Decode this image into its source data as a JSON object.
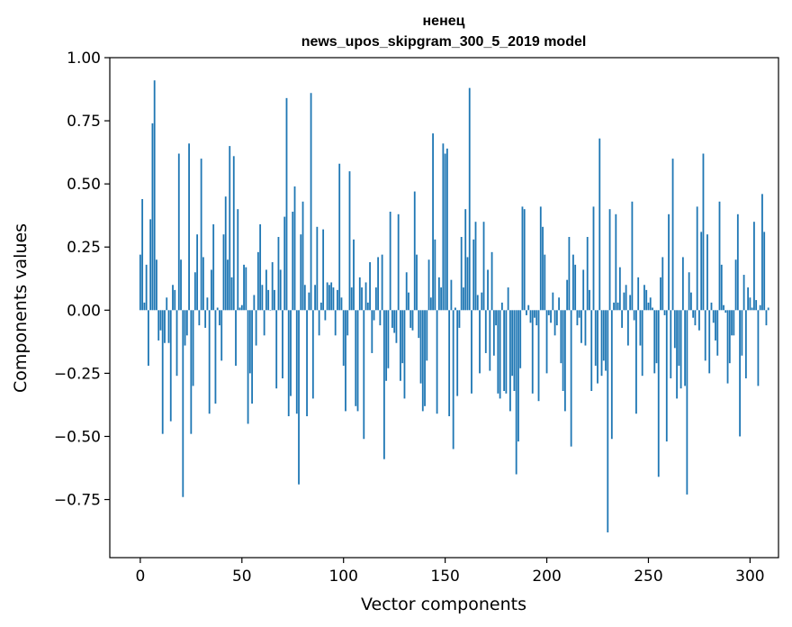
{
  "chart_data": {
    "type": "bar",
    "title_line1": "ненец",
    "title_line2": "news_upos_skipgram_300_5_2019 model",
    "xlabel": "Vector components",
    "ylabel": "Components values",
    "xlim": [
      -15,
      314
    ],
    "ylim": [
      -0.98,
      1.0
    ],
    "x_ticks": [
      0,
      50,
      100,
      150,
      200,
      250,
      300
    ],
    "x_tick_labels": [
      "0",
      "50",
      "100",
      "150",
      "200",
      "250",
      "300"
    ],
    "y_ticks": [
      -0.75,
      -0.5,
      -0.25,
      0.0,
      0.25,
      0.5,
      0.75,
      1.0
    ],
    "y_tick_labels": [
      "−0.75",
      "−0.50",
      "−0.25",
      "0.00",
      "0.25",
      "0.50",
      "0.75",
      "1.00"
    ],
    "bar_color": "#1f77b4",
    "values": [
      0.22,
      0.44,
      0.03,
      0.18,
      -0.22,
      0.36,
      0.74,
      0.91,
      0.2,
      -0.12,
      -0.08,
      -0.49,
      -0.13,
      0.05,
      -0.13,
      -0.44,
      0.1,
      0.08,
      -0.26,
      0.62,
      0.2,
      -0.74,
      -0.14,
      -0.1,
      0.66,
      -0.49,
      -0.3,
      0.15,
      0.3,
      -0.06,
      0.6,
      0.21,
      -0.07,
      0.05,
      -0.41,
      0.16,
      0.34,
      -0.37,
      0.01,
      -0.06,
      -0.2,
      0.3,
      0.45,
      0.2,
      0.65,
      0.13,
      0.61,
      -0.22,
      0.4,
      0.01,
      0.02,
      0.18,
      0.17,
      -0.45,
      -0.25,
      -0.37,
      0.06,
      -0.14,
      0.23,
      0.34,
      0.1,
      -0.1,
      0.16,
      0.08,
      0.0,
      0.19,
      0.08,
      -0.31,
      0.29,
      0.16,
      -0.27,
      0.37,
      0.84,
      -0.42,
      -0.34,
      0.39,
      0.49,
      -0.41,
      -0.69,
      0.3,
      0.43,
      0.1,
      -0.42,
      0.07,
      0.86,
      -0.35,
      0.1,
      0.33,
      -0.1,
      0.03,
      0.32,
      -0.04,
      0.11,
      0.1,
      0.11,
      0.09,
      -0.1,
      0.08,
      0.58,
      0.05,
      -0.22,
      -0.4,
      -0.1,
      0.55,
      0.09,
      0.28,
      -0.38,
      -0.4,
      0.13,
      0.09,
      -0.51,
      0.11,
      0.03,
      0.19,
      -0.17,
      -0.04,
      0.09,
      0.21,
      -0.06,
      0.22,
      -0.59,
      -0.28,
      -0.23,
      0.39,
      -0.07,
      -0.09,
      -0.13,
      0.38,
      -0.28,
      -0.21,
      -0.35,
      0.15,
      0.07,
      -0.07,
      -0.08,
      0.47,
      0.22,
      -0.11,
      -0.29,
      -0.4,
      -0.38,
      -0.2,
      0.2,
      0.05,
      0.7,
      0.28,
      -0.41,
      0.13,
      0.09,
      0.66,
      0.62,
      0.64,
      -0.42,
      0.12,
      -0.55,
      0.01,
      -0.34,
      -0.07,
      0.29,
      0.09,
      0.4,
      0.21,
      0.88,
      -0.33,
      0.28,
      0.35,
      0.06,
      -0.25,
      0.07,
      0.35,
      -0.17,
      0.16,
      -0.24,
      0.23,
      -0.18,
      -0.06,
      -0.33,
      -0.35,
      0.03,
      -0.32,
      -0.33,
      0.09,
      -0.4,
      -0.26,
      -0.32,
      -0.65,
      -0.52,
      -0.23,
      0.41,
      0.4,
      -0.02,
      0.02,
      -0.05,
      -0.33,
      -0.03,
      -0.06,
      -0.36,
      0.41,
      0.33,
      0.22,
      -0.25,
      -0.02,
      -0.05,
      0.07,
      -0.1,
      -0.06,
      0.05,
      -0.21,
      -0.32,
      -0.4,
      0.12,
      0.29,
      -0.54,
      0.22,
      0.18,
      -0.06,
      -0.03,
      -0.13,
      0.16,
      -0.14,
      0.29,
      0.08,
      -0.32,
      0.41,
      -0.22,
      -0.29,
      0.68,
      -0.26,
      -0.2,
      -0.24,
      -0.88,
      0.4,
      -0.51,
      0.03,
      0.38,
      0.03,
      0.17,
      -0.07,
      0.07,
      0.1,
      -0.14,
      0.06,
      0.43,
      -0.04,
      -0.41,
      0.13,
      -0.14,
      -0.26,
      0.1,
      0.08,
      0.03,
      0.05,
      0.01,
      -0.25,
      -0.21,
      -0.66,
      0.13,
      0.21,
      -0.02,
      -0.52,
      0.38,
      -0.27,
      0.6,
      -0.15,
      -0.35,
      -0.22,
      -0.31,
      0.21,
      -0.3,
      -0.73,
      0.15,
      0.07,
      -0.03,
      -0.06,
      0.41,
      -0.08,
      0.31,
      0.62,
      -0.2,
      0.3,
      -0.25,
      0.03,
      -0.05,
      -0.12,
      -0.18,
      0.43,
      0.18,
      0.02,
      -0.01,
      -0.29,
      -0.21,
      -0.1,
      -0.1,
      0.2,
      0.38,
      -0.5,
      -0.18,
      0.14,
      -0.27,
      0.09,
      0.05,
      0.01,
      0.35,
      0.04,
      -0.3,
      0.02,
      0.46,
      0.31,
      -0.06,
      0.01
    ]
  }
}
